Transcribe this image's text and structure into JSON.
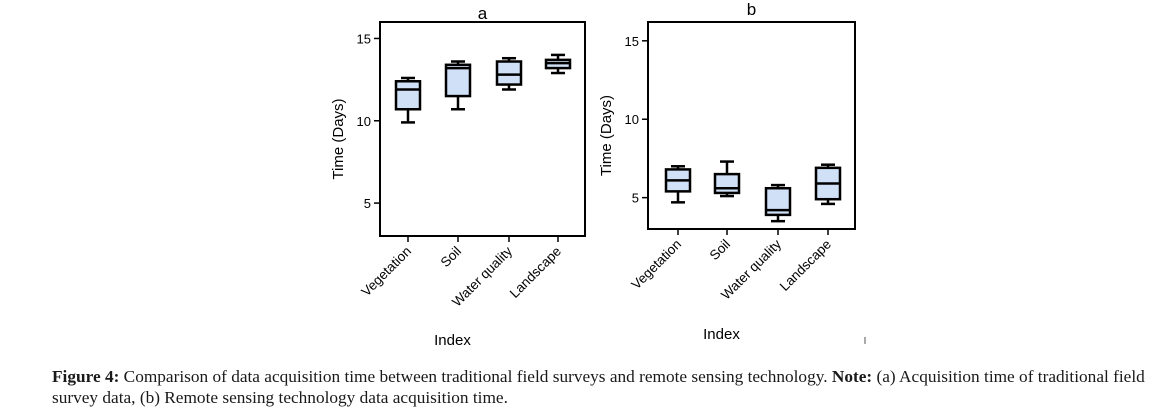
{
  "chart_data": [
    {
      "type": "box",
      "title": "a",
      "xlabel": "Index",
      "ylabel": "Time (Days)",
      "ylim": [
        3,
        16
      ],
      "yticks": [
        5,
        10,
        15
      ],
      "categories": [
        "Vegetation",
        "Soil",
        "Water quality",
        "Landscape"
      ],
      "boxes": [
        {
          "min": 9.9,
          "q1": 10.7,
          "median": 11.9,
          "q3": 12.4,
          "max": 12.6
        },
        {
          "min": 10.7,
          "q1": 11.5,
          "median": 13.2,
          "q3": 13.4,
          "max": 13.6
        },
        {
          "min": 11.9,
          "q1": 12.2,
          "median": 12.8,
          "q3": 13.6,
          "max": 13.8
        },
        {
          "min": 12.9,
          "q1": 13.2,
          "median": 13.5,
          "q3": 13.7,
          "max": 14.0
        }
      ]
    },
    {
      "type": "box",
      "title": "b",
      "xlabel": "Index",
      "ylabel": "Time (Days)",
      "ylim": [
        3,
        16.2
      ],
      "yticks": [
        5,
        10,
        15
      ],
      "categories": [
        "Vegetation",
        "Soil",
        "Water quality",
        "Landscape"
      ],
      "boxes": [
        {
          "min": 4.7,
          "q1": 5.4,
          "median": 6.1,
          "q3": 6.8,
          "max": 7.0
        },
        {
          "min": 5.1,
          "q1": 5.3,
          "median": 5.6,
          "q3": 6.5,
          "max": 7.3
        },
        {
          "min": 3.5,
          "q1": 3.9,
          "median": 4.2,
          "q3": 5.6,
          "max": 5.8
        },
        {
          "min": 4.6,
          "q1": 4.9,
          "median": 5.9,
          "q3": 6.9,
          "max": 7.1
        }
      ]
    }
  ],
  "caption": {
    "label": "Figure 4:",
    "text": " Comparison of data acquisition time between traditional field surveys and remote sensing technology. ",
    "note_label": "Note:",
    "note_text": " (a) Acquisition time of traditional field survey data, (b) Remote sensing technology data acquisition time."
  },
  "colors": {
    "box_fill": "#cfe0f7",
    "ink": "#000000"
  }
}
